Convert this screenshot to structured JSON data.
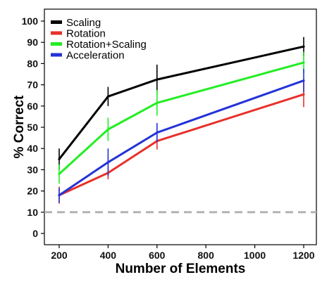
{
  "chart_data": {
    "type": "line",
    "xlabel": "Number of Elements",
    "ylabel": "% Correct",
    "x_ticks": [
      200,
      400,
      600,
      800,
      1000,
      1200
    ],
    "y_ticks": [
      0,
      10,
      20,
      30,
      40,
      50,
      60,
      70,
      80,
      90,
      100
    ],
    "xlim": [
      200,
      1200
    ],
    "ylim": [
      0,
      100
    ],
    "grid": false,
    "legend_position": "top-left",
    "x": [
      200,
      400,
      600,
      1200
    ],
    "series": [
      {
        "name": "Scaling",
        "color": "#000000",
        "values": [
          35,
          64.5,
          72.5,
          88
        ],
        "error": [
          5,
          4.5,
          7,
          4.5
        ]
      },
      {
        "name": "Rotation",
        "color": "#e8302a",
        "values": [
          18,
          28.5,
          43.5,
          65.5
        ],
        "error": [
          4,
          3,
          4,
          6
        ]
      },
      {
        "name": "Rotation+Scaling",
        "color": "#22ee22",
        "values": [
          28,
          49,
          61.5,
          80.5
        ],
        "error": [
          4.5,
          5.5,
          6,
          5
        ]
      },
      {
        "name": "Acceleration",
        "color": "#2433d6",
        "values": [
          18,
          33.5,
          47.5,
          72
        ],
        "error": [
          3.5,
          6.5,
          4.5,
          5.5
        ]
      }
    ],
    "reference_line": {
      "y": 10,
      "style": "dashed",
      "color": "#b3b3b3"
    }
  }
}
